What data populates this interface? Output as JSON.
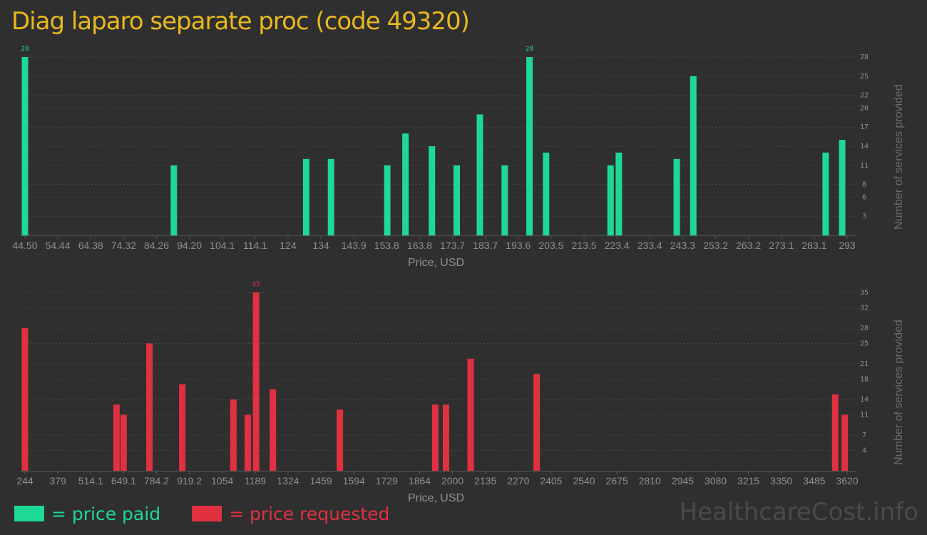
{
  "page": {
    "title": "Diag laparo separate proc (code 49320)",
    "watermark": "HealthcareCost.info"
  },
  "colors": {
    "background": "#2f2f2f",
    "title": "#e8b81e",
    "paid": "#1ed896",
    "requested": "#e03141",
    "axis_text": "#8f8f8f",
    "grid": "#4a4a4a"
  },
  "legend": {
    "items": [
      {
        "label": "= price paid",
        "color": "#1ed896"
      },
      {
        "label": "= price requested",
        "color": "#e03141"
      }
    ]
  },
  "chart_data": [
    {
      "type": "bar",
      "id": "paid",
      "xlabel": "Price, USD",
      "ylabel": "Number of services provided",
      "x_ticks": [
        "44.50",
        "54.44",
        "64.38",
        "74.32",
        "84.26",
        "94.20",
        "104.1",
        "114.1",
        "124",
        "134",
        "143.9",
        "153.8",
        "163.8",
        "173.7",
        "183.7",
        "193.6",
        "203.5",
        "213.5",
        "223.4",
        "233.4",
        "243.3",
        "253.2",
        "263.2",
        "273.1",
        "283.1",
        "293"
      ],
      "xlim": [
        44.5,
        293
      ],
      "y_ticks": [
        3,
        6,
        8,
        11,
        14,
        17,
        20,
        22,
        25,
        28
      ],
      "ylim": [
        0,
        28
      ],
      "grid": true,
      "legend_position": "bottom-left",
      "color": "#1ed896",
      "points": [
        {
          "x": 44.5,
          "y": 28,
          "label": "28"
        },
        {
          "x": 89.5,
          "y": 11
        },
        {
          "x": 129.5,
          "y": 12
        },
        {
          "x": 137,
          "y": 12
        },
        {
          "x": 154,
          "y": 11
        },
        {
          "x": 159.5,
          "y": 16
        },
        {
          "x": 167.5,
          "y": 14
        },
        {
          "x": 175,
          "y": 11
        },
        {
          "x": 182,
          "y": 19
        },
        {
          "x": 189.5,
          "y": 11
        },
        {
          "x": 197,
          "y": 28,
          "label": "28"
        },
        {
          "x": 202,
          "y": 13
        },
        {
          "x": 221.5,
          "y": 11
        },
        {
          "x": 224,
          "y": 13
        },
        {
          "x": 241.5,
          "y": 12
        },
        {
          "x": 246.5,
          "y": 25
        },
        {
          "x": 286.5,
          "y": 13
        },
        {
          "x": 291.5,
          "y": 15
        }
      ]
    },
    {
      "type": "bar",
      "id": "requested",
      "xlabel": "Price, USD",
      "ylabel": "Number of services provided",
      "x_ticks": [
        "244",
        "379",
        "514.1",
        "649.1",
        "784.2",
        "919.2",
        "1054",
        "1189",
        "1324",
        "1459",
        "1594",
        "1729",
        "1864",
        "2000",
        "2135",
        "2270",
        "2405",
        "2540",
        "2675",
        "2810",
        "2945",
        "3080",
        "3215",
        "3350",
        "3485",
        "3620"
      ],
      "xlim": [
        244,
        3620
      ],
      "y_ticks": [
        4,
        7,
        11,
        14,
        18,
        21,
        25,
        28,
        32,
        35
      ],
      "ylim": [
        0,
        35
      ],
      "grid": true,
      "legend_position": "bottom-left",
      "color": "#e03141",
      "points": [
        {
          "x": 244,
          "y": 28
        },
        {
          "x": 620,
          "y": 13
        },
        {
          "x": 649,
          "y": 11
        },
        {
          "x": 755,
          "y": 25
        },
        {
          "x": 890,
          "y": 17
        },
        {
          "x": 1100,
          "y": 14
        },
        {
          "x": 1159,
          "y": 11
        },
        {
          "x": 1193,
          "y": 35,
          "label": "35"
        },
        {
          "x": 1262,
          "y": 16
        },
        {
          "x": 1537,
          "y": 12
        },
        {
          "x": 1929,
          "y": 13
        },
        {
          "x": 1973,
          "y": 13
        },
        {
          "x": 2074,
          "y": 22
        },
        {
          "x": 2345,
          "y": 19
        },
        {
          "x": 3571,
          "y": 15
        },
        {
          "x": 3610,
          "y": 11
        }
      ]
    }
  ]
}
